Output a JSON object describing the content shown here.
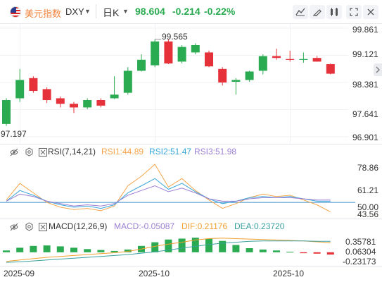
{
  "header": {
    "name": "美元指数",
    "symbol": "DXY",
    "period": "日K",
    "price": "98.604",
    "change": "-0.214",
    "change_pct": "-0.22%",
    "colors": {
      "down": "#2bab51",
      "up": "#e5323a",
      "name": "#f0823a"
    }
  },
  "toolbar": {
    "icons": [
      "line-tool-icon",
      "pen-tool-icon",
      "compare-icon",
      "fullscreen-icon",
      "close-icon"
    ]
  },
  "main_chart": {
    "y_labels": [
      "99.861",
      "99.121",
      "98.381",
      "97.641",
      "96.901"
    ],
    "high_label": "99.565",
    "low_label": "97.197"
  },
  "rsi": {
    "title": "RSI(7,14,21)",
    "rsi1": "RSI1:44.89",
    "rsi2": "RSI2:51.47",
    "rsi3": "RSI3:51.98",
    "y_labels": [
      "78.86",
      "61.21",
      "50.00",
      "43.56"
    ],
    "colors": {
      "rsi1": "#f4a54b",
      "rsi2": "#39a7d8",
      "rsi3": "#9b7fd3"
    }
  },
  "macd": {
    "title": "MACD(12,26,9)",
    "macd": "MACD:-0.05087",
    "dif": "DIF:0.21176",
    "dea": "DEA:0.23720",
    "y_labels": [
      "0.35781",
      "0.06304",
      "-0.23173"
    ],
    "colors": {
      "macd": "#9b7fd3",
      "dif": "#f0a030",
      "dea": "#3aa0a0"
    }
  },
  "x_axis": {
    "labels": [
      "2025-09",
      "2025-10",
      "2025-10"
    ]
  },
  "chart_data": {
    "type": "candlestick",
    "candles": [
      {
        "o": 97.25,
        "h": 97.95,
        "l": 97.2,
        "c": 97.9
      },
      {
        "o": 97.95,
        "h": 98.75,
        "l": 97.85,
        "c": 98.45
      },
      {
        "o": 98.5,
        "h": 98.55,
        "l": 98.1,
        "c": 98.15
      },
      {
        "o": 98.2,
        "h": 98.25,
        "l": 97.82,
        "c": 97.9
      },
      {
        "o": 97.95,
        "h": 98.0,
        "l": 97.7,
        "c": 97.8
      },
      {
        "o": 97.8,
        "h": 97.85,
        "l": 97.55,
        "c": 97.7
      },
      {
        "o": 97.7,
        "h": 97.95,
        "l": 97.65,
        "c": 97.9
      },
      {
        "o": 97.9,
        "h": 97.95,
        "l": 97.7,
        "c": 97.75
      },
      {
        "o": 97.95,
        "h": 98.55,
        "l": 97.93,
        "c": 98.05
      },
      {
        "o": 98.1,
        "h": 98.8,
        "l": 98.05,
        "c": 98.7
      },
      {
        "o": 98.7,
        "h": 99.15,
        "l": 98.68,
        "c": 99.0
      },
      {
        "o": 98.85,
        "h": 99.56,
        "l": 98.8,
        "c": 99.5
      },
      {
        "o": 99.5,
        "h": 99.55,
        "l": 98.88,
        "c": 98.9
      },
      {
        "o": 98.95,
        "h": 99.4,
        "l": 98.9,
        "c": 99.35
      },
      {
        "o": 99.2,
        "h": 99.45,
        "l": 99.15,
        "c": 99.4
      },
      {
        "o": 99.2,
        "h": 99.25,
        "l": 98.8,
        "c": 98.82
      },
      {
        "o": 98.75,
        "h": 98.8,
        "l": 98.3,
        "c": 98.38
      },
      {
        "o": 98.4,
        "h": 98.5,
        "l": 98.05,
        "c": 98.45
      },
      {
        "o": 98.45,
        "h": 98.7,
        "l": 98.4,
        "c": 98.68
      },
      {
        "o": 98.7,
        "h": 99.15,
        "l": 98.6,
        "c": 99.1
      },
      {
        "o": 99.1,
        "h": 99.3,
        "l": 99.0,
        "c": 99.05
      },
      {
        "o": 99.02,
        "h": 99.25,
        "l": 98.95,
        "c": 99.0
      },
      {
        "o": 99.0,
        "h": 99.2,
        "l": 98.92,
        "c": 99.02
      },
      {
        "o": 99.05,
        "h": 99.1,
        "l": 98.95,
        "c": 98.95
      },
      {
        "o": 98.88,
        "h": 98.9,
        "l": 98.6,
        "c": 98.62
      }
    ],
    "macd_hist": [
      0.04,
      0.1,
      0.14,
      0.15,
      0.13,
      0.1,
      0.07,
      0.05,
      0.03,
      0.06,
      0.14,
      0.22,
      0.28,
      0.3,
      0.32,
      0.3,
      0.25,
      0.16,
      0.09,
      0.06,
      0.04,
      0.01,
      -0.02,
      -0.03,
      -0.05
    ],
    "ylim": [
      96.901,
      99.861
    ]
  }
}
